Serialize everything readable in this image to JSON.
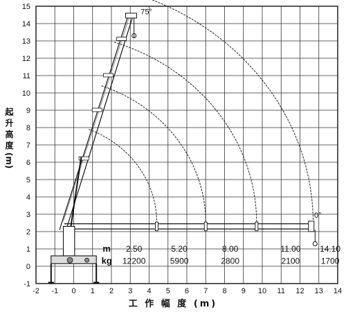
{
  "chart_data": {
    "type": "load chart",
    "xlabel": "工 作 幅 度 (m)",
    "ylabel": "起 升 高 度 (m)",
    "xlim": [
      -2,
      14
    ],
    "ylim": [
      -1,
      15
    ],
    "x_ticks": [
      "-2",
      "-1",
      "0",
      "1",
      "2",
      "3",
      "4",
      "5",
      "6",
      "7",
      "8",
      "9",
      "10",
      "11",
      "12",
      "13",
      "14"
    ],
    "y_ticks": [
      "-1",
      "0",
      "1",
      "2",
      "3",
      "4",
      "5",
      "6",
      "7",
      "8",
      "9",
      "10",
      "11",
      "12",
      "13",
      "14",
      "15"
    ],
    "angle_labels": [
      "75°",
      "0°"
    ],
    "row_labels": [
      "m",
      "kg"
    ],
    "radius_m": [
      "2.50",
      "5.20",
      "8.00",
      "11.00",
      "14.10"
    ],
    "load_kg": [
      "12200",
      "5900",
      "2800",
      "2100",
      "1700"
    ]
  }
}
